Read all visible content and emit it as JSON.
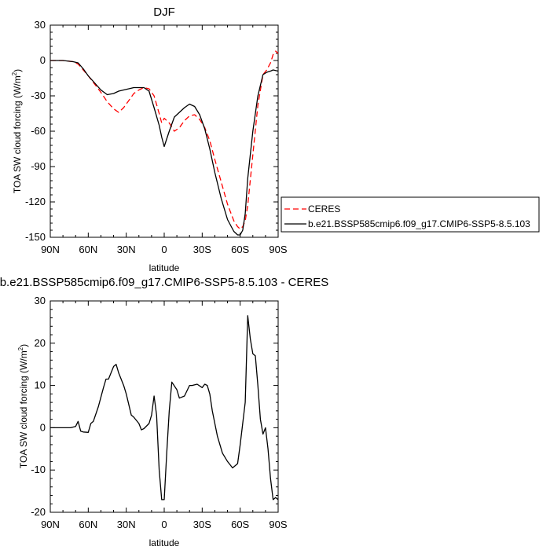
{
  "chart_data": [
    {
      "type": "line",
      "title": "DJF",
      "xlabel": "latitude",
      "ylabel_main": "TOA SW cloud forcing (W/m",
      "ylabel_sup": "2",
      "ylabel_close": ")",
      "xlim": [
        90,
        -90
      ],
      "ylim": [
        -150,
        30
      ],
      "x_ticks": [
        {
          "value": 90,
          "label": "90N"
        },
        {
          "value": 60,
          "label": "60N"
        },
        {
          "value": 30,
          "label": "30N"
        },
        {
          "value": 0,
          "label": "0"
        },
        {
          "value": -30,
          "label": "30S"
        },
        {
          "value": -60,
          "label": "60S"
        },
        {
          "value": -90,
          "label": "90S"
        }
      ],
      "y_ticks": [
        30,
        0,
        -30,
        -60,
        -90,
        -120,
        -150
      ],
      "legend_position": "right",
      "series": [
        {
          "name": "CERES",
          "color": "#ff0000",
          "dash": "7,4",
          "x": [
            90,
            80,
            72,
            68,
            64,
            60,
            55,
            50,
            45,
            40,
            36,
            32,
            28,
            24,
            20,
            16,
            12,
            8,
            4,
            2,
            0,
            -4,
            -8,
            -12,
            -16,
            -20,
            -24,
            -28,
            -32,
            -36,
            -40,
            -45,
            -50,
            -55,
            -58,
            -60,
            -62,
            -64,
            -66,
            -70,
            -74,
            -78,
            -81,
            -84,
            -86,
            -88,
            -90
          ],
          "y": [
            0,
            0,
            -1,
            -3,
            -8,
            -13,
            -20,
            -27,
            -35,
            -41,
            -44,
            -40,
            -34,
            -28,
            -25,
            -23,
            -24,
            -30,
            -45,
            -53,
            -49,
            -53,
            -60,
            -57,
            -51,
            -47,
            -46,
            -50,
            -57,
            -68,
            -84,
            -103,
            -122,
            -136,
            -141,
            -143,
            -141,
            -136,
            -123,
            -80,
            -38,
            -12,
            -8,
            -2,
            5,
            8,
            6
          ]
        },
        {
          "name": "b.e21.BSSP585cmip6.f09_g17.CMIP6-SSP5-8.5.103",
          "color": "#000000",
          "dash": "",
          "x": [
            90,
            80,
            72,
            68,
            64,
            60,
            55,
            50,
            45,
            40,
            36,
            32,
            28,
            24,
            20,
            16,
            12,
            10,
            8,
            4,
            2,
            0,
            -4,
            -8,
            -12,
            -16,
            -20,
            -24,
            -28,
            -32,
            -36,
            -40,
            -45,
            -50,
            -55,
            -58,
            -60,
            -62,
            -64,
            -66,
            -70,
            -74,
            -78,
            -81,
            -84,
            -86,
            -88,
            -90
          ],
          "y": [
            0,
            0,
            -1,
            -2,
            -7,
            -13,
            -19,
            -25,
            -29,
            -28,
            -26,
            -25,
            -24,
            -23,
            -23,
            -23,
            -26,
            -33,
            -40,
            -55,
            -65,
            -73,
            -60,
            -48,
            -44,
            -40,
            -37,
            -39,
            -46,
            -58,
            -75,
            -95,
            -117,
            -135,
            -145,
            -148,
            -148,
            -144,
            -130,
            -100,
            -60,
            -30,
            -12,
            -10,
            -9,
            -8,
            -8.5,
            -9
          ]
        }
      ]
    },
    {
      "type": "line",
      "title": "b.e21.BSSP585cmip6.f09_g17.CMIP6-SSP5-8.5.103 - CERES",
      "xlabel": "latitude",
      "ylabel_main": "TOA SW cloud forcing (W/m",
      "ylabel_sup": "2",
      "ylabel_close": ")",
      "xlim": [
        90,
        -90
      ],
      "ylim": [
        -20,
        30
      ],
      "x_ticks": [
        {
          "value": 90,
          "label": "90N"
        },
        {
          "value": 60,
          "label": "60N"
        },
        {
          "value": 30,
          "label": "30N"
        },
        {
          "value": 0,
          "label": "0"
        },
        {
          "value": -30,
          "label": "30S"
        },
        {
          "value": -60,
          "label": "60S"
        },
        {
          "value": -90,
          "label": "90S"
        }
      ],
      "y_ticks": [
        30,
        20,
        10,
        0,
        -10,
        -20
      ],
      "series": [
        {
          "color": "#000000",
          "x": [
            90,
            80,
            74,
            70,
            68,
            66,
            64,
            60,
            58,
            56,
            52,
            48,
            46,
            44,
            40,
            38,
            36,
            32,
            30,
            26,
            24,
            20,
            18,
            16,
            12,
            10,
            8,
            6,
            4,
            2,
            0,
            -2,
            -4,
            -6,
            -10,
            -12,
            -16,
            -20,
            -22,
            -26,
            -30,
            -32,
            -34,
            -36,
            -38,
            -42,
            -46,
            -50,
            -54,
            -58,
            -60,
            -64,
            -66,
            -68,
            -70,
            -72,
            -74,
            -76,
            -78,
            -80,
            -82,
            -84,
            -86,
            -88,
            -90
          ],
          "y": [
            0,
            0,
            0,
            0.3,
            1.5,
            -0.8,
            -1,
            -1.1,
            1,
            1.5,
            5,
            9.5,
            11.5,
            11.5,
            14.5,
            15,
            13,
            10,
            8,
            3,
            2.5,
            1,
            -0.5,
            -0.2,
            1,
            3,
            7.5,
            3,
            -10,
            -17,
            -17,
            -6,
            4,
            10.8,
            9,
            7,
            7.5,
            10,
            10,
            10.3,
            9.5,
            10.3,
            10,
            8,
            4,
            -2,
            -6,
            -8,
            -9.5,
            -8.5,
            -4,
            6,
            26.5,
            21,
            17.5,
            17,
            10,
            2,
            -1.5,
            0,
            -5,
            -12,
            -17,
            -16.5,
            -17
          ]
        }
      ]
    }
  ]
}
